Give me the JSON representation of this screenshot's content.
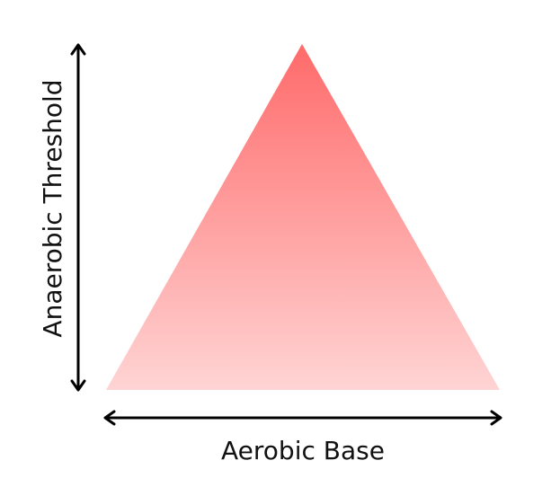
{
  "diagram": {
    "y_axis_label": "Anaerobic Threshold",
    "x_axis_label": "Aerobic Base"
  }
}
